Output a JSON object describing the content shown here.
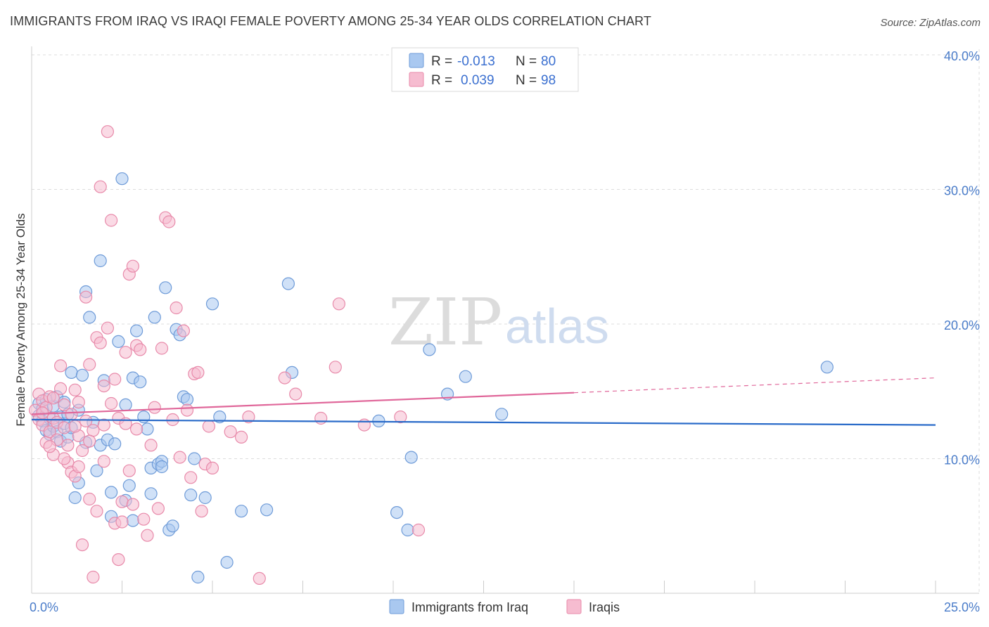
{
  "header": {
    "title": "IMMIGRANTS FROM IRAQ VS IRAQI FEMALE POVERTY AMONG 25-34 YEAR OLDS CORRELATION CHART",
    "source": "Source: ZipAtlas.com"
  },
  "watermark": {
    "zip": "ZIP",
    "atlas": "atlas"
  },
  "colors": {
    "blue_fill": "#a9c8f0",
    "blue_stroke": "#6e9bd8",
    "blue_line": "#2a6bc9",
    "pink_fill": "#f6bcd0",
    "pink_stroke": "#e88aaa",
    "pink_line": "#e0679a",
    "grid": "#dddddd",
    "tick_text": "#4a7cc9"
  },
  "stats": {
    "blue": {
      "r_label": "R =",
      "r_value": "-0.013",
      "n_label": "N =",
      "n_value": "80"
    },
    "pink": {
      "r_label": "R =",
      "r_value": "0.039",
      "n_label": "N =",
      "n_value": "98"
    }
  },
  "chart_data": {
    "type": "scatter",
    "title": "IMMIGRANTS FROM IRAQ VS IRAQI FEMALE POVERTY AMONG 25-34 YEAR OLDS CORRELATION CHART",
    "xlabel": "",
    "ylabel": "Female Poverty Among 25-34 Year Olds",
    "xlim": [
      0,
      25
    ],
    "ylim": [
      0,
      40
    ],
    "x_tick_labels": [
      "0.0%",
      "25.0%"
    ],
    "y_ticks": [
      10,
      20,
      30,
      40
    ],
    "y_tick_labels": [
      "10.0%",
      "20.0%",
      "30.0%",
      "40.0%"
    ],
    "grid": true,
    "legend_position": "bottom-center",
    "series": [
      {
        "name": "Immigrants from Iraq",
        "color": "blue",
        "trend": {
          "x0": 0,
          "y0": 12.9,
          "x1": 25,
          "y1": 12.5
        },
        "points": [
          [
            0.2,
            13.2
          ],
          [
            0.2,
            14.1
          ],
          [
            0.3,
            12.8
          ],
          [
            0.3,
            13.7
          ],
          [
            0.4,
            12.1
          ],
          [
            0.4,
            14.4
          ],
          [
            0.5,
            13.0
          ],
          [
            0.5,
            11.8
          ],
          [
            0.6,
            13.9
          ],
          [
            0.6,
            12.4
          ],
          [
            0.7,
            12.0
          ],
          [
            0.7,
            14.6
          ],
          [
            0.8,
            11.3
          ],
          [
            0.8,
            13.1
          ],
          [
            0.9,
            12.6
          ],
          [
            0.9,
            14.2
          ],
          [
            1.0,
            13.3
          ],
          [
            1.0,
            11.6
          ],
          [
            1.1,
            16.4
          ],
          [
            1.1,
            12.3
          ],
          [
            1.2,
            7.1
          ],
          [
            1.3,
            8.2
          ],
          [
            1.3,
            13.6
          ],
          [
            1.4,
            16.2
          ],
          [
            1.5,
            22.4
          ],
          [
            1.5,
            11.2
          ],
          [
            1.6,
            20.5
          ],
          [
            1.7,
            12.7
          ],
          [
            1.8,
            9.1
          ],
          [
            1.9,
            24.7
          ],
          [
            1.9,
            11.0
          ],
          [
            2.0,
            15.8
          ],
          [
            2.1,
            11.4
          ],
          [
            2.2,
            5.7
          ],
          [
            2.2,
            7.5
          ],
          [
            2.3,
            11.1
          ],
          [
            2.4,
            18.7
          ],
          [
            2.5,
            30.8
          ],
          [
            2.6,
            14.0
          ],
          [
            2.6,
            6.9
          ],
          [
            2.7,
            8.0
          ],
          [
            2.8,
            5.4
          ],
          [
            2.8,
            16.0
          ],
          [
            2.9,
            19.5
          ],
          [
            3.0,
            15.7
          ],
          [
            3.1,
            13.1
          ],
          [
            3.2,
            12.2
          ],
          [
            3.3,
            7.4
          ],
          [
            3.3,
            9.3
          ],
          [
            3.4,
            20.5
          ],
          [
            3.5,
            9.6
          ],
          [
            3.6,
            9.8
          ],
          [
            3.6,
            9.4
          ],
          [
            3.7,
            22.7
          ],
          [
            3.8,
            4.7
          ],
          [
            3.9,
            5.0
          ],
          [
            4.0,
            19.6
          ],
          [
            4.1,
            19.2
          ],
          [
            4.2,
            14.6
          ],
          [
            4.3,
            14.4
          ],
          [
            4.4,
            7.3
          ],
          [
            4.5,
            10.0
          ],
          [
            4.6,
            1.2
          ],
          [
            4.8,
            7.1
          ],
          [
            5.0,
            21.5
          ],
          [
            5.2,
            13.1
          ],
          [
            5.4,
            2.3
          ],
          [
            5.8,
            6.1
          ],
          [
            6.5,
            6.2
          ],
          [
            7.1,
            23.0
          ],
          [
            7.2,
            16.4
          ],
          [
            9.6,
            12.8
          ],
          [
            10.1,
            6.0
          ],
          [
            10.4,
            4.7
          ],
          [
            10.5,
            10.1
          ],
          [
            11.0,
            18.1
          ],
          [
            11.5,
            14.8
          ],
          [
            12.0,
            16.1
          ],
          [
            13.0,
            13.3
          ],
          [
            22.0,
            16.8
          ]
        ]
      },
      {
        "name": "Iraqis",
        "color": "pink",
        "trend": {
          "x0": 0,
          "y0": 13.3,
          "x1": 15,
          "y1": 14.9,
          "dash_x1": 25,
          "dash_y1": 16.0
        },
        "points": [
          [
            0.1,
            13.6
          ],
          [
            0.2,
            14.8
          ],
          [
            0.2,
            12.9
          ],
          [
            0.3,
            14.3
          ],
          [
            0.3,
            12.5
          ],
          [
            0.4,
            13.8
          ],
          [
            0.4,
            11.2
          ],
          [
            0.5,
            12.0
          ],
          [
            0.5,
            14.6
          ],
          [
            0.6,
            10.3
          ],
          [
            0.6,
            13.0
          ],
          [
            0.7,
            11.4
          ],
          [
            0.7,
            12.7
          ],
          [
            0.8,
            16.9
          ],
          [
            0.8,
            15.2
          ],
          [
            0.9,
            14.0
          ],
          [
            0.9,
            12.3
          ],
          [
            1.0,
            11.0
          ],
          [
            1.0,
            9.7
          ],
          [
            1.1,
            13.3
          ],
          [
            1.1,
            9.0
          ],
          [
            1.2,
            8.7
          ],
          [
            1.2,
            15.1
          ],
          [
            1.3,
            14.2
          ],
          [
            1.3,
            11.7
          ],
          [
            1.4,
            10.6
          ],
          [
            1.4,
            3.6
          ],
          [
            1.5,
            12.8
          ],
          [
            1.5,
            22.0
          ],
          [
            1.6,
            17.0
          ],
          [
            1.6,
            7.0
          ],
          [
            1.7,
            12.1
          ],
          [
            1.7,
            1.2
          ],
          [
            1.8,
            6.1
          ],
          [
            1.8,
            19.0
          ],
          [
            1.9,
            30.2
          ],
          [
            1.9,
            18.6
          ],
          [
            2.0,
            12.5
          ],
          [
            2.0,
            15.4
          ],
          [
            2.1,
            34.3
          ],
          [
            2.1,
            19.7
          ],
          [
            2.2,
            27.7
          ],
          [
            2.2,
            14.1
          ],
          [
            2.3,
            15.9
          ],
          [
            2.3,
            5.2
          ],
          [
            2.4,
            13.0
          ],
          [
            2.4,
            2.5
          ],
          [
            2.5,
            5.3
          ],
          [
            2.5,
            6.8
          ],
          [
            2.6,
            17.9
          ],
          [
            2.6,
            12.6
          ],
          [
            2.7,
            23.7
          ],
          [
            2.7,
            9.1
          ],
          [
            2.8,
            24.3
          ],
          [
            2.8,
            6.6
          ],
          [
            2.9,
            18.4
          ],
          [
            3.0,
            18.1
          ],
          [
            3.1,
            5.5
          ],
          [
            3.2,
            4.3
          ],
          [
            3.4,
            13.8
          ],
          [
            3.5,
            6.3
          ],
          [
            3.6,
            18.2
          ],
          [
            3.7,
            27.9
          ],
          [
            3.8,
            27.6
          ],
          [
            3.9,
            12.9
          ],
          [
            4.0,
            21.2
          ],
          [
            4.1,
            10.1
          ],
          [
            4.2,
            19.5
          ],
          [
            4.3,
            13.6
          ],
          [
            4.4,
            8.6
          ],
          [
            4.5,
            16.3
          ],
          [
            4.6,
            16.4
          ],
          [
            4.7,
            6.1
          ],
          [
            4.8,
            9.6
          ],
          [
            5.0,
            9.3
          ],
          [
            5.5,
            12.0
          ],
          [
            6.0,
            13.1
          ],
          [
            6.3,
            1.1
          ],
          [
            7.0,
            16.0
          ],
          [
            7.3,
            14.8
          ],
          [
            8.0,
            13.0
          ],
          [
            8.4,
            16.8
          ],
          [
            8.5,
            21.5
          ],
          [
            9.2,
            12.5
          ],
          [
            10.2,
            13.1
          ],
          [
            10.7,
            4.7
          ],
          [
            1.3,
            9.4
          ],
          [
            0.9,
            10.0
          ],
          [
            2.0,
            9.8
          ],
          [
            1.6,
            11.3
          ],
          [
            0.5,
            10.9
          ],
          [
            0.3,
            13.4
          ],
          [
            3.3,
            11.0
          ],
          [
            2.9,
            12.2
          ],
          [
            1.2,
            12.4
          ],
          [
            0.6,
            14.5
          ],
          [
            4.9,
            12.4
          ],
          [
            5.8,
            11.6
          ]
        ]
      }
    ]
  },
  "legend": [
    {
      "label": "Immigrants from Iraq",
      "color": "blue"
    },
    {
      "label": "Iraqis",
      "color": "pink"
    }
  ]
}
